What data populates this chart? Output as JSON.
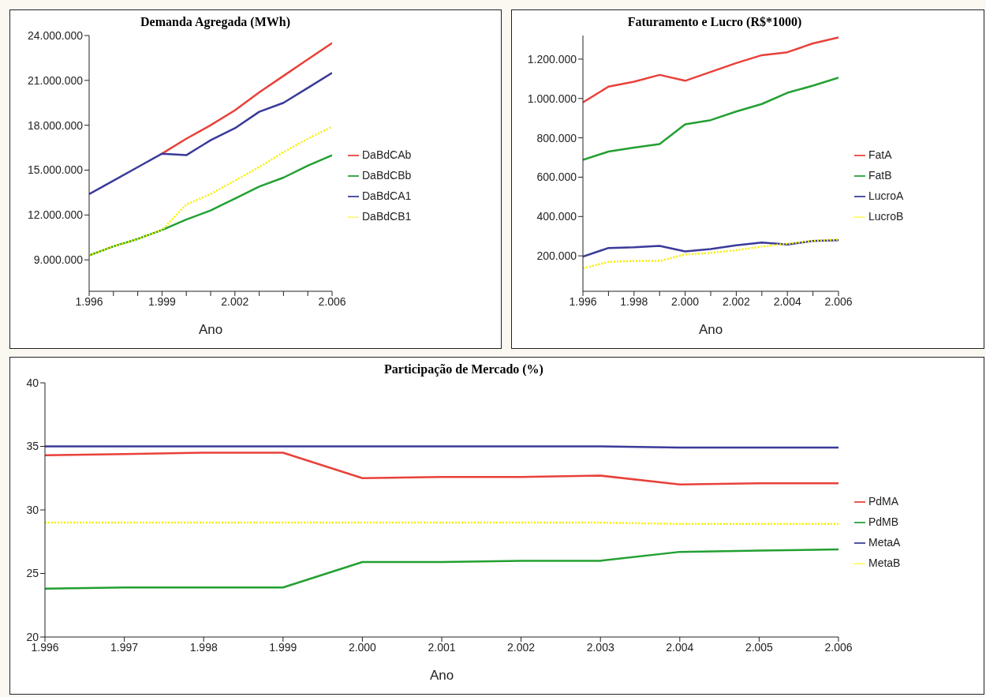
{
  "chart_data": [
    {
      "type": "line",
      "title": "Demanda Agregada (MWh)",
      "xlabel": "Ano",
      "legend": "right",
      "x": [
        1996,
        1997,
        1998,
        1999,
        2000,
        2001,
        2002,
        2003,
        2004,
        2005,
        2006
      ],
      "xlim": [
        1996,
        2006
      ],
      "xticks": [
        {
          "value": 1996,
          "label": "1.996"
        },
        {
          "value": 1997,
          "label": null
        },
        {
          "value": 1998,
          "label": null
        },
        {
          "value": 1999,
          "label": "1.999"
        },
        {
          "value": 2000,
          "label": null
        },
        {
          "value": 2001,
          "label": null
        },
        {
          "value": 2002,
          "label": "2.002"
        },
        {
          "value": 2003,
          "label": null
        },
        {
          "value": 2004,
          "label": null
        },
        {
          "value": 2005,
          "label": null
        },
        {
          "value": 2006,
          "label": "2.006"
        }
      ],
      "ylim": [
        6900000,
        24000000
      ],
      "yticks": [
        {
          "value": 9000000,
          "label": "9.000.000"
        },
        {
          "value": 12000000,
          "label": "12.000.000"
        },
        {
          "value": 15000000,
          "label": "15.000.000"
        },
        {
          "value": 18000000,
          "label": "18.000.000"
        },
        {
          "value": 21000000,
          "label": "21.000.000"
        },
        {
          "value": 24000000,
          "label": "24.000.000"
        }
      ],
      "series": [
        {
          "name": "DaBdCAb",
          "color": "#e8413a",
          "values": [
            null,
            null,
            null,
            16100000,
            17100000,
            18000000,
            19000000,
            20200000,
            21300000,
            22400000,
            23500000
          ]
        },
        {
          "name": "DaBdCBb",
          "color": "#22a032",
          "values": [
            9300000,
            9900000,
            10400000,
            11000000,
            11700000,
            12300000,
            13100000,
            13900000,
            14500000,
            15300000,
            16000000
          ]
        },
        {
          "name": "DaBdCA1",
          "color": "#3a3a9a",
          "values": [
            13400000,
            14300000,
            15200000,
            16100000,
            16000000,
            17000000,
            17800000,
            18900000,
            19500000,
            20500000,
            21500000
          ]
        },
        {
          "name": "DaBdCB1",
          "color": "#f5f000",
          "line_style": "dotted",
          "values": [
            9300000,
            9900000,
            10400000,
            11000000,
            12700000,
            13400000,
            14300000,
            15200000,
            16200000,
            17100000,
            17900000
          ]
        }
      ]
    },
    {
      "type": "line",
      "title": "Faturamento e Lucro (R$*1000)",
      "xlabel": "Ano",
      "legend": "right",
      "x": [
        1996,
        1997,
        1998,
        1999,
        2000,
        2001,
        2002,
        2003,
        2004,
        2005,
        2006
      ],
      "xlim": [
        1996,
        2006
      ],
      "xticks": [
        {
          "value": 1996,
          "label": "1.996"
        },
        {
          "value": 1997,
          "label": null
        },
        {
          "value": 1998,
          "label": "1.998"
        },
        {
          "value": 1999,
          "label": null
        },
        {
          "value": 2000,
          "label": "2.000"
        },
        {
          "value": 2001,
          "label": null
        },
        {
          "value": 2002,
          "label": "2.002"
        },
        {
          "value": 2003,
          "label": null
        },
        {
          "value": 2004,
          "label": "2.004"
        },
        {
          "value": 2005,
          "label": null
        },
        {
          "value": 2006,
          "label": "2.006"
        }
      ],
      "ylim": [
        20000,
        1320000
      ],
      "yticks": [
        {
          "value": 200000,
          "label": "200.000"
        },
        {
          "value": 400000,
          "label": "400.000"
        },
        {
          "value": 600000,
          "label": "600.000"
        },
        {
          "value": 800000,
          "label": "800.000"
        },
        {
          "value": 1000000,
          "label": "1.000.000"
        },
        {
          "value": 1200000,
          "label": "1.200.000"
        }
      ],
      "series": [
        {
          "name": "FatA",
          "color": "#e8413a",
          "values": [
            980000,
            1060000,
            1085000,
            1120000,
            1090000,
            1135000,
            1180000,
            1220000,
            1235000,
            1280000,
            1310000
          ]
        },
        {
          "name": "FatB",
          "color": "#22a032",
          "values": [
            688000,
            730000,
            750000,
            768000,
            869000,
            890000,
            934000,
            972000,
            1029000,
            1065000,
            1106000
          ]
        },
        {
          "name": "LucroA",
          "color": "#3a3a9a",
          "values": [
            196000,
            240000,
            244000,
            251000,
            223000,
            235000,
            254000,
            268000,
            258000,
            276000,
            280000
          ]
        },
        {
          "name": "LucroB",
          "color": "#f5f000",
          "line_style": "dotted",
          "values": [
            137000,
            169000,
            174000,
            174000,
            207000,
            215000,
            229000,
            247000,
            262000,
            276000,
            283000
          ]
        }
      ]
    },
    {
      "type": "line",
      "title": "Participação de Mercado (%)",
      "xlabel": "Ano",
      "legend": "right",
      "x": [
        1996,
        1997,
        1998,
        1999,
        2000,
        2001,
        2002,
        2003,
        2004,
        2005,
        2006
      ],
      "xlim": [
        1996,
        2006
      ],
      "xticks": [
        {
          "value": 1996,
          "label": "1.996"
        },
        {
          "value": 1997,
          "label": "1.997"
        },
        {
          "value": 1998,
          "label": "1.998"
        },
        {
          "value": 1999,
          "label": "1.999"
        },
        {
          "value": 2000,
          "label": "2.000"
        },
        {
          "value": 2001,
          "label": "2.001"
        },
        {
          "value": 2002,
          "label": "2.002"
        },
        {
          "value": 2003,
          "label": "2.003"
        },
        {
          "value": 2004,
          "label": "2.004"
        },
        {
          "value": 2005,
          "label": "2.005"
        },
        {
          "value": 2006,
          "label": "2.006"
        }
      ],
      "ylim": [
        20,
        40
      ],
      "yticks": [
        20,
        25,
        30,
        35,
        40
      ],
      "series": [
        {
          "name": "PdMA",
          "color": "#e8413a",
          "values": [
            34.3,
            34.4,
            34.5,
            34.5,
            32.5,
            32.6,
            32.6,
            32.7,
            32.0,
            32.1,
            32.1
          ]
        },
        {
          "name": "PdMB",
          "color": "#22a032",
          "values": [
            23.8,
            23.9,
            23.9,
            23.9,
            25.9,
            25.9,
            26.0,
            26.0,
            26.7,
            26.8,
            26.9
          ]
        },
        {
          "name": "MetaA",
          "color": "#3a3a9a",
          "values": [
            35,
            35,
            35,
            35,
            35,
            35,
            35,
            35,
            34.9,
            34.9,
            34.9
          ]
        },
        {
          "name": "MetaB",
          "color": "#f5f000",
          "line_style": "dotted",
          "values": [
            29,
            29,
            29,
            29,
            29,
            29,
            29,
            29,
            28.9,
            28.9,
            28.9
          ]
        }
      ]
    }
  ]
}
